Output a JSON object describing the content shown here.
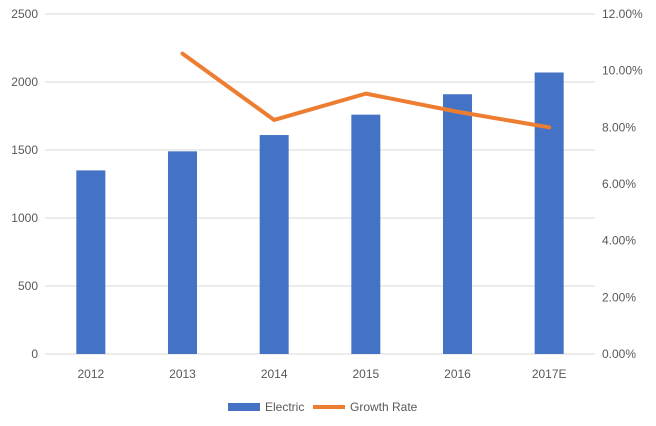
{
  "chart_data": {
    "type": "bar+line",
    "categories": [
      "2012",
      "2013",
      "2014",
      "2015",
      "2016",
      "2017E"
    ],
    "series": [
      {
        "name": "Electric",
        "type": "bar",
        "axis": "left",
        "color": "#4472C4",
        "values": [
          1350,
          1490,
          1610,
          1760,
          1910,
          2070
        ]
      },
      {
        "name": "Growth Rate",
        "type": "line",
        "axis": "right",
        "color": "#ED7D31",
        "values": [
          null,
          10.6,
          8.26,
          9.19,
          8.55,
          8.0
        ]
      }
    ],
    "y_left": {
      "min": 0,
      "max": 2500,
      "ticks": [
        "0",
        "500",
        "1000",
        "1500",
        "2000",
        "2500"
      ]
    },
    "y_right": {
      "min": 0,
      "max": 12,
      "ticks": [
        "0.00%",
        "2.00%",
        "4.00%",
        "6.00%",
        "8.00%",
        "10.00%",
        "12.00%"
      ]
    },
    "grid": true,
    "legend": "bottom"
  }
}
